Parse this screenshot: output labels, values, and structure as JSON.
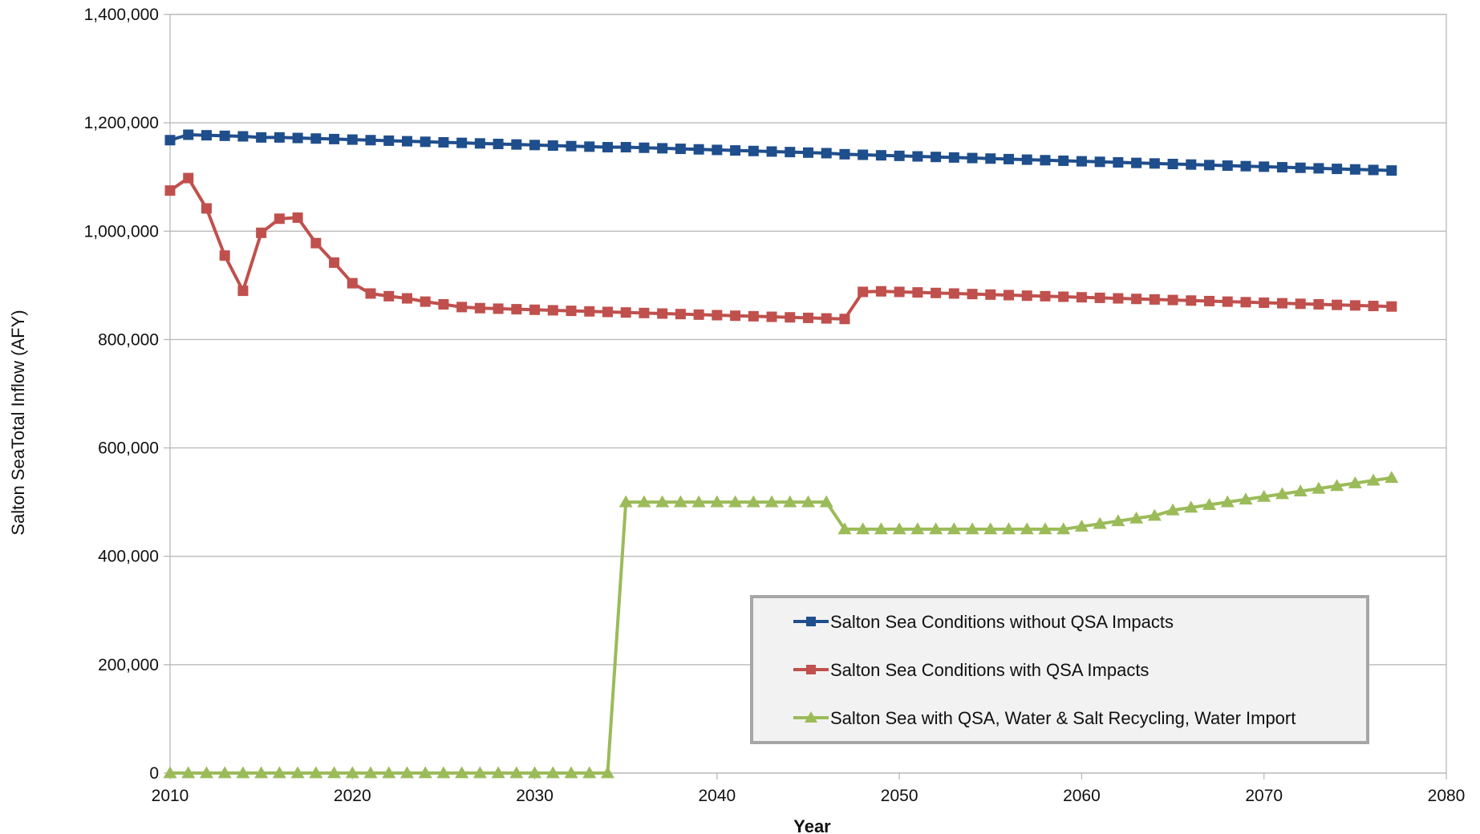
{
  "chart_data": {
    "type": "line",
    "xlabel": "Year",
    "ylabel": "Salton SeaTotal Inflow (AFY)",
    "xlim": [
      2010,
      2080
    ],
    "ylim": [
      0,
      1400000
    ],
    "x_ticks": [
      2010,
      2020,
      2030,
      2040,
      2050,
      2060,
      2070,
      2080
    ],
    "y_ticks": [
      0,
      200000,
      400000,
      600000,
      800000,
      1000000,
      1200000,
      1400000
    ],
    "x_tick_labels": [
      "2010",
      "2020",
      "2030",
      "2040",
      "2050",
      "2060",
      "2070",
      "2080"
    ],
    "y_tick_labels": [
      "0",
      "200,000",
      "400,000",
      "600,000",
      "800,000",
      "1,000,000",
      "1,200,000",
      "1,400,000"
    ],
    "grid": "horizontal",
    "legend_position": "bottom-right",
    "x": [
      2010,
      2011,
      2012,
      2013,
      2014,
      2015,
      2016,
      2017,
      2018,
      2019,
      2020,
      2021,
      2022,
      2023,
      2024,
      2025,
      2026,
      2027,
      2028,
      2029,
      2030,
      2031,
      2032,
      2033,
      2034,
      2035,
      2036,
      2037,
      2038,
      2039,
      2040,
      2041,
      2042,
      2043,
      2044,
      2045,
      2046,
      2047,
      2048,
      2049,
      2050,
      2051,
      2052,
      2053,
      2054,
      2055,
      2056,
      2057,
      2058,
      2059,
      2060,
      2061,
      2062,
      2063,
      2064,
      2065,
      2066,
      2067,
      2068,
      2069,
      2070,
      2071,
      2072,
      2073,
      2074,
      2075,
      2076,
      2077
    ],
    "series": [
      {
        "name": "Salton Sea Conditions without QSA Impacts",
        "color": "#1f4e8c",
        "marker": "square",
        "values": [
          1168000,
          1178000,
          1177000,
          1176000,
          1175000,
          1173000,
          1173000,
          1172000,
          1171000,
          1170000,
          1169000,
          1168000,
          1167000,
          1166000,
          1165000,
          1164000,
          1163000,
          1162000,
          1161000,
          1160000,
          1159000,
          1158000,
          1157000,
          1156000,
          1155000,
          1155000,
          1154000,
          1153000,
          1152000,
          1151000,
          1150000,
          1149000,
          1148000,
          1147000,
          1146000,
          1145000,
          1144000,
          1142000,
          1141000,
          1140000,
          1139000,
          1138000,
          1137000,
          1136000,
          1135000,
          1134000,
          1133000,
          1132000,
          1131000,
          1130000,
          1129000,
          1128000,
          1127000,
          1126000,
          1125000,
          1124000,
          1123000,
          1122000,
          1121000,
          1120000,
          1119000,
          1118000,
          1117000,
          1116000,
          1115000,
          1114000,
          1113000,
          1112000
        ]
      },
      {
        "name": "Salton Sea Conditions with QSA Impacts",
        "color": "#c0504d",
        "marker": "square",
        "values": [
          1075000,
          1098000,
          1042000,
          955000,
          890000,
          997000,
          1023000,
          1025000,
          978000,
          942000,
          904000,
          885000,
          880000,
          876000,
          870000,
          865000,
          860000,
          858000,
          857000,
          856000,
          855000,
          854000,
          853000,
          852000,
          851000,
          850000,
          849000,
          848000,
          847000,
          846000,
          845000,
          844000,
          843000,
          842000,
          841000,
          840000,
          839000,
          838000,
          888000,
          889000,
          888000,
          887000,
          886000,
          885000,
          884000,
          883000,
          882000,
          881000,
          880000,
          879000,
          878000,
          877000,
          876000,
          875000,
          874000,
          873000,
          872000,
          871000,
          870000,
          869000,
          868000,
          867000,
          866000,
          865000,
          864000,
          863000,
          862000,
          861000
        ]
      },
      {
        "name": "Salton Sea with QSA, Water & Salt Recycling, Water Import",
        "color": "#9bbb59",
        "marker": "triangle",
        "values": [
          0,
          0,
          0,
          0,
          0,
          0,
          0,
          0,
          0,
          0,
          0,
          0,
          0,
          0,
          0,
          0,
          0,
          0,
          0,
          0,
          0,
          0,
          0,
          0,
          0,
          500000,
          500000,
          500000,
          500000,
          500000,
          500000,
          500000,
          500000,
          500000,
          500000,
          500000,
          500000,
          450000,
          450000,
          450000,
          450000,
          450000,
          450000,
          450000,
          450000,
          450000,
          450000,
          450000,
          450000,
          450000,
          455000,
          460000,
          465000,
          470000,
          475000,
          485000,
          490000,
          495000,
          500000,
          505000,
          510000,
          515000,
          520000,
          525000,
          530000,
          535000,
          540000,
          545000
        ]
      }
    ]
  }
}
